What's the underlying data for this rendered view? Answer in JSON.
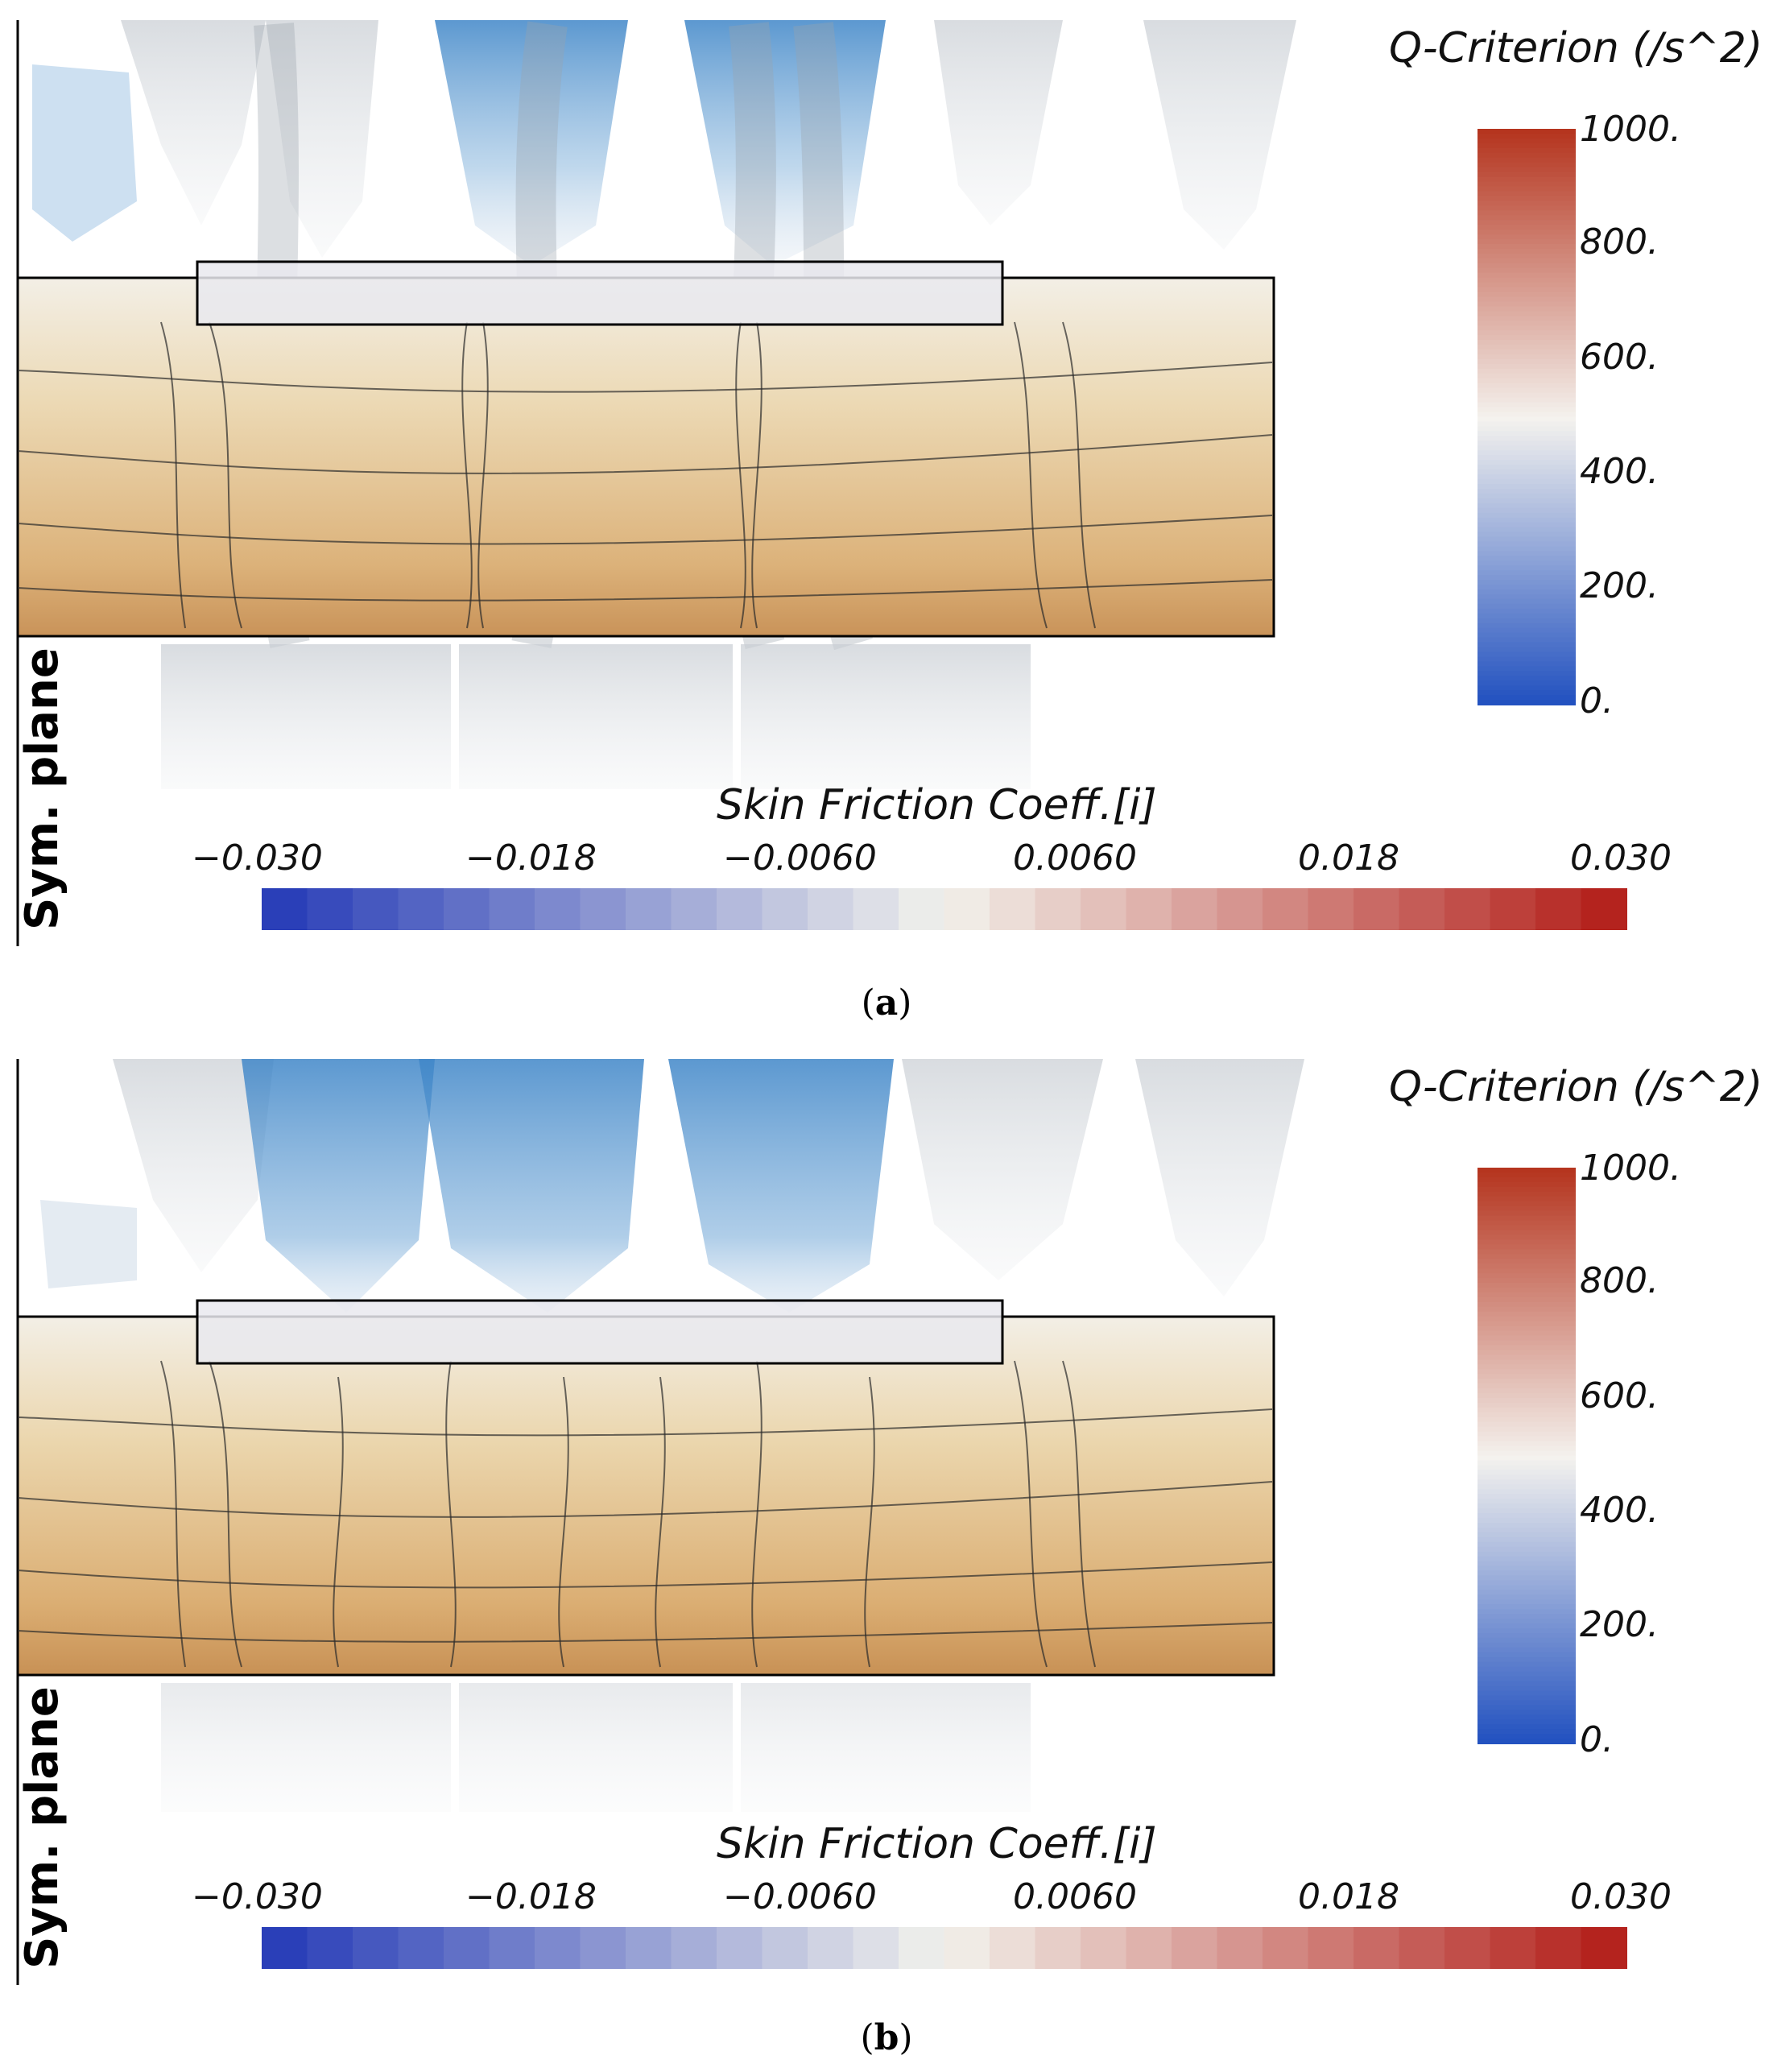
{
  "panels": [
    {
      "id": "a",
      "plane_label": "Sym. plane",
      "q_colorbar": {
        "title": "Q-Criterion (/s^2)",
        "ticks": [
          "1000.",
          "800.",
          "600.",
          "400.",
          "200.",
          "0."
        ],
        "range": [
          0,
          1000
        ]
      },
      "cf_colorbar": {
        "title": "Skin Friction Coeff.[i]",
        "ticks": [
          "−0.030",
          "−0.018",
          "−0.0060",
          "0.0060",
          "0.018",
          "0.030"
        ],
        "range": [
          -0.03,
          0.03
        ],
        "bands": 30
      },
      "caption": "a"
    },
    {
      "id": "b",
      "plane_label": "Sym. plane",
      "q_colorbar": {
        "title": "Q-Criterion (/s^2)",
        "ticks": [
          "1000.",
          "800.",
          "600.",
          "400.",
          "200.",
          "0."
        ],
        "range": [
          0,
          1000
        ]
      },
      "cf_colorbar": {
        "title": "Skin Friction Coeff.[i]",
        "ticks": [
          "−0.030",
          "−0.018",
          "−0.0060",
          "0.0060",
          "0.018",
          "0.030"
        ],
        "range": [
          -0.03,
          0.03
        ],
        "bands": 30
      },
      "caption": "b"
    }
  ],
  "colors": {
    "cf_negative": "#2a3fb8",
    "cf_zero": "#f2f2ec",
    "cf_positive": "#b4231e",
    "q_low": "#1f4fbf",
    "q_mid": "#f4f2ee",
    "q_high": "#b5351f",
    "surface_warm": "#d9b27a",
    "vortex_blue": "#3f86c8"
  }
}
